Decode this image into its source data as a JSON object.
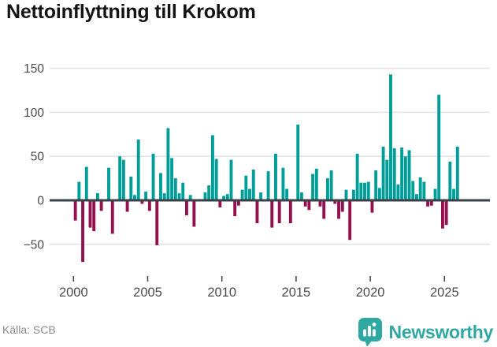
{
  "title": "Nettoinflyttning till Krokom",
  "source": "Källa: SCB",
  "brand": {
    "name": "Newsworthy",
    "logo_icon": "bar-chart-pin-icon"
  },
  "colors": {
    "positive_bar": "#009e98",
    "negative_bar": "#94104e",
    "zero_line": "#3b4248",
    "grid_line": "#e4e4e4",
    "title_text": "#141414",
    "axis_text": "#4a4a4a",
    "tick_mark": "#4a4a4a",
    "source_text": "#8a8a8a",
    "brand_teal": "#2fa7a2"
  },
  "chart_data": {
    "type": "bar",
    "title": "Nettoinflyttning till Krokom",
    "xlabel": "",
    "ylabel": "",
    "frequency": "quarterly",
    "start_period": "2000Q1",
    "end_period": "2025Q4",
    "grid": true,
    "legend_position": "none",
    "ylim": [
      -80,
      160
    ],
    "y_ticks": [
      150,
      100,
      50,
      0,
      -50
    ],
    "y_tick_labels": [
      "150",
      "100",
      "50",
      "0",
      "−50"
    ],
    "x_tick_years": [
      2000,
      2005,
      2010,
      2015,
      2020,
      2025
    ],
    "x_tick_labels": [
      "2000",
      "2005",
      "2010",
      "2015",
      "2020",
      "2025"
    ],
    "values": [
      -23,
      21,
      -70,
      38,
      -31,
      -35,
      8,
      -12,
      0,
      37,
      -38,
      0,
      50,
      46,
      -13,
      27,
      6,
      69,
      -4,
      10,
      -12,
      53,
      -51,
      31,
      8,
      82,
      48,
      25,
      8,
      20,
      -17,
      6,
      -30,
      0,
      0,
      9,
      17,
      74,
      47,
      -8,
      5,
      7,
      46,
      -18,
      -6,
      12,
      28,
      13,
      35,
      -26,
      9,
      0,
      33,
      -31,
      53,
      -26,
      37,
      13,
      -26,
      0,
      86,
      9,
      -7,
      -11,
      30,
      36,
      -7,
      -21,
      25,
      34,
      -4,
      -21,
      -13,
      12,
      -45,
      12,
      53,
      20,
      20,
      21,
      -14,
      34,
      14,
      61,
      46,
      143,
      59,
      18,
      60,
      50,
      57,
      22,
      7,
      26,
      21,
      -7,
      -6,
      13,
      120,
      -32,
      -28,
      44,
      13,
      61
    ]
  }
}
